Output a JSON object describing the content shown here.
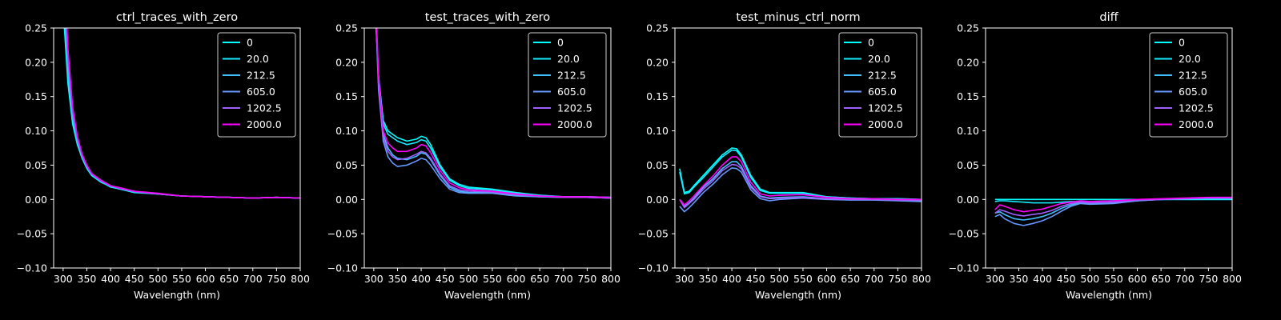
{
  "figure": {
    "background": "#000000",
    "foreground": "#ffffff"
  },
  "legend": {
    "placement": "top-right",
    "entries": [
      {
        "label": "0",
        "color": "#00ffff"
      },
      {
        "label": "20.0",
        "color": "#14ebff"
      },
      {
        "label": "212.5",
        "color": "#40bfff"
      },
      {
        "label": "605.0",
        "color": "#6699ff"
      },
      {
        "label": "1202.5",
        "color": "#a05fff"
      },
      {
        "label": "2000.0",
        "color": "#ff00ff"
      }
    ]
  },
  "chart_data": [
    {
      "type": "line",
      "title": "ctrl_traces_with_zero",
      "xlabel": "Wavelength (nm)",
      "ylabel": "",
      "xlim": [
        280,
        800
      ],
      "ylim": [
        -0.1,
        0.25
      ],
      "xticks": [
        300,
        350,
        400,
        450,
        500,
        550,
        600,
        650,
        700,
        750,
        800
      ],
      "yticks": [
        -0.1,
        -0.05,
        0.0,
        0.05,
        0.1,
        0.15,
        0.2,
        0.25
      ],
      "grid": false,
      "legend": "top-right",
      "x": [
        300,
        310,
        320,
        330,
        340,
        350,
        360,
        370,
        380,
        390,
        400,
        420,
        450,
        500,
        550,
        600,
        650,
        700,
        750,
        800
      ],
      "series": [
        {
          "name": "0",
          "values": [
            0.28,
            0.17,
            0.11,
            0.08,
            0.06,
            0.045,
            0.035,
            0.03,
            0.025,
            0.022,
            0.018,
            0.015,
            0.01,
            0.008,
            0.005,
            0.004,
            0.003,
            0.002,
            0.003,
            0.002
          ]
        },
        {
          "name": "20.0",
          "values": [
            0.3,
            0.18,
            0.115,
            0.082,
            0.061,
            0.046,
            0.036,
            0.031,
            0.026,
            0.022,
            0.019,
            0.015,
            0.011,
            0.008,
            0.005,
            0.004,
            0.003,
            0.002,
            0.003,
            0.002
          ]
        },
        {
          "name": "212.5",
          "values": [
            0.32,
            0.19,
            0.12,
            0.085,
            0.062,
            0.047,
            0.037,
            0.031,
            0.026,
            0.023,
            0.019,
            0.016,
            0.011,
            0.008,
            0.005,
            0.004,
            0.003,
            0.002,
            0.003,
            0.002
          ]
        },
        {
          "name": "605.0",
          "values": [
            0.34,
            0.2,
            0.125,
            0.087,
            0.063,
            0.048,
            0.037,
            0.032,
            0.027,
            0.023,
            0.02,
            0.016,
            0.011,
            0.008,
            0.005,
            0.004,
            0.003,
            0.002,
            0.003,
            0.002
          ]
        },
        {
          "name": "1202.5",
          "values": [
            0.36,
            0.21,
            0.13,
            0.09,
            0.065,
            0.049,
            0.038,
            0.032,
            0.027,
            0.024,
            0.02,
            0.016,
            0.012,
            0.008,
            0.005,
            0.004,
            0.003,
            0.002,
            0.003,
            0.002
          ]
        },
        {
          "name": "2000.0",
          "values": [
            0.38,
            0.22,
            0.135,
            0.092,
            0.066,
            0.05,
            0.038,
            0.033,
            0.028,
            0.024,
            0.02,
            0.017,
            0.012,
            0.009,
            0.005,
            0.004,
            0.003,
            0.002,
            0.003,
            0.002
          ]
        }
      ]
    },
    {
      "type": "line",
      "title": "test_traces_with_zero",
      "xlabel": "Wavelength (nm)",
      "ylabel": "",
      "xlim": [
        280,
        800
      ],
      "ylim": [
        -0.1,
        0.25
      ],
      "xticks": [
        300,
        350,
        400,
        450,
        500,
        550,
        600,
        650,
        700,
        750,
        800
      ],
      "yticks": [
        -0.1,
        -0.05,
        0.0,
        0.05,
        0.1,
        0.15,
        0.2,
        0.25
      ],
      "grid": false,
      "legend": "top-right",
      "x": [
        300,
        310,
        320,
        330,
        340,
        350,
        370,
        390,
        400,
        410,
        420,
        440,
        460,
        480,
        500,
        550,
        600,
        650,
        700,
        750,
        800
      ],
      "series": [
        {
          "name": "0",
          "values": [
            0.32,
            0.18,
            0.115,
            0.1,
            0.095,
            0.09,
            0.085,
            0.088,
            0.092,
            0.09,
            0.08,
            0.05,
            0.03,
            0.022,
            0.018,
            0.015,
            0.01,
            0.006,
            0.004,
            0.004,
            0.003
          ]
        },
        {
          "name": "20.0",
          "values": [
            0.33,
            0.18,
            0.11,
            0.095,
            0.09,
            0.085,
            0.08,
            0.083,
            0.087,
            0.085,
            0.075,
            0.047,
            0.028,
            0.02,
            0.016,
            0.014,
            0.009,
            0.006,
            0.004,
            0.004,
            0.003
          ]
        },
        {
          "name": "212.5",
          "values": [
            0.34,
            0.17,
            0.095,
            0.075,
            0.065,
            0.06,
            0.058,
            0.063,
            0.068,
            0.066,
            0.058,
            0.035,
            0.018,
            0.012,
            0.01,
            0.01,
            0.006,
            0.004,
            0.003,
            0.003,
            0.002
          ]
        },
        {
          "name": "605.0",
          "values": [
            0.35,
            0.16,
            0.085,
            0.062,
            0.053,
            0.048,
            0.05,
            0.056,
            0.06,
            0.058,
            0.05,
            0.03,
            0.015,
            0.01,
            0.009,
            0.009,
            0.005,
            0.004,
            0.003,
            0.003,
            0.002
          ]
        },
        {
          "name": "1202.5",
          "values": [
            0.36,
            0.17,
            0.09,
            0.07,
            0.062,
            0.058,
            0.06,
            0.066,
            0.07,
            0.068,
            0.06,
            0.037,
            0.02,
            0.014,
            0.012,
            0.011,
            0.007,
            0.005,
            0.003,
            0.003,
            0.002
          ]
        },
        {
          "name": "2000.0",
          "values": [
            0.37,
            0.18,
            0.1,
            0.082,
            0.075,
            0.07,
            0.07,
            0.075,
            0.08,
            0.078,
            0.068,
            0.042,
            0.024,
            0.017,
            0.014,
            0.012,
            0.008,
            0.005,
            0.004,
            0.004,
            0.003
          ]
        }
      ]
    },
    {
      "type": "line",
      "title": "test_minus_ctrl_norm",
      "xlabel": "Wavelength (nm)",
      "ylabel": "",
      "xlim": [
        280,
        800
      ],
      "ylim": [
        -0.1,
        0.25
      ],
      "xticks": [
        300,
        350,
        400,
        450,
        500,
        550,
        600,
        650,
        700,
        750,
        800
      ],
      "yticks": [
        -0.1,
        -0.05,
        0.0,
        0.05,
        0.1,
        0.15,
        0.2,
        0.25
      ],
      "grid": false,
      "legend": "top-right",
      "x": [
        290,
        300,
        310,
        320,
        340,
        360,
        380,
        400,
        410,
        420,
        440,
        460,
        480,
        500,
        550,
        600,
        650,
        700,
        750,
        800
      ],
      "series": [
        {
          "name": "0",
          "values": [
            0.045,
            0.01,
            0.012,
            0.02,
            0.035,
            0.05,
            0.065,
            0.075,
            0.074,
            0.065,
            0.035,
            0.015,
            0.01,
            0.01,
            0.01,
            0.004,
            0.002,
            0.001,
            0.001,
            0.0
          ]
        },
        {
          "name": "20.0",
          "values": [
            0.04,
            0.008,
            0.01,
            0.018,
            0.032,
            0.047,
            0.062,
            0.072,
            0.071,
            0.062,
            0.032,
            0.013,
            0.009,
            0.009,
            0.009,
            0.004,
            0.002,
            0.001,
            0.001,
            0.0
          ]
        },
        {
          "name": "212.5",
          "values": [
            0.0,
            -0.01,
            -0.005,
            0.002,
            0.018,
            0.03,
            0.045,
            0.055,
            0.055,
            0.048,
            0.02,
            0.005,
            0.002,
            0.003,
            0.004,
            0.001,
            0.0,
            0.0,
            -0.001,
            -0.002
          ]
        },
        {
          "name": "605.0",
          "values": [
            -0.01,
            -0.018,
            -0.012,
            -0.005,
            0.01,
            0.022,
            0.036,
            0.046,
            0.045,
            0.04,
            0.014,
            0.001,
            -0.002,
            0.0,
            0.002,
            0.0,
            -0.001,
            -0.001,
            -0.002,
            -0.003
          ]
        },
        {
          "name": "1202.5",
          "values": [
            0.0,
            -0.012,
            -0.006,
            0.0,
            0.015,
            0.027,
            0.042,
            0.051,
            0.05,
            0.045,
            0.018,
            0.004,
            0.001,
            0.002,
            0.003,
            0.001,
            0.0,
            0.0,
            -0.001,
            -0.001
          ]
        },
        {
          "name": "2000.0",
          "values": [
            0.0,
            -0.008,
            -0.002,
            0.005,
            0.02,
            0.034,
            0.05,
            0.062,
            0.062,
            0.055,
            0.025,
            0.008,
            0.005,
            0.006,
            0.007,
            0.003,
            0.001,
            0.001,
            0.0,
            0.0
          ]
        }
      ]
    },
    {
      "type": "line",
      "title": "diff",
      "xlabel": "Wavelength (nm)",
      "ylabel": "",
      "xlim": [
        280,
        800
      ],
      "ylim": [
        -0.1,
        0.25
      ],
      "xticks": [
        300,
        350,
        400,
        450,
        500,
        550,
        600,
        650,
        700,
        750,
        800
      ],
      "yticks": [
        -0.1,
        -0.05,
        0.0,
        0.05,
        0.1,
        0.15,
        0.2,
        0.25
      ],
      "grid": false,
      "legend": "top-right",
      "x": [
        300,
        310,
        320,
        340,
        360,
        380,
        400,
        420,
        440,
        460,
        480,
        500,
        550,
        600,
        650,
        700,
        750,
        800
      ],
      "series": [
        {
          "name": "0",
          "values": [
            0.0,
            0.0,
            0.0,
            0.0,
            0.0,
            0.0,
            0.0,
            0.0,
            0.0,
            0.0,
            0.0,
            0.0,
            0.0,
            0.0,
            0.0,
            0.0,
            0.0,
            0.0
          ]
        },
        {
          "name": "20.0",
          "values": [
            -0.003,
            -0.002,
            -0.002,
            -0.003,
            -0.004,
            -0.005,
            -0.005,
            -0.005,
            -0.004,
            -0.003,
            -0.003,
            -0.003,
            -0.002,
            -0.001,
            0.0,
            0.0,
            0.0,
            0.0
          ]
        },
        {
          "name": "212.5",
          "values": [
            -0.02,
            -0.018,
            -0.022,
            -0.028,
            -0.03,
            -0.028,
            -0.025,
            -0.02,
            -0.013,
            -0.008,
            -0.005,
            -0.006,
            -0.005,
            -0.002,
            0.0,
            0.001,
            0.002,
            0.002
          ]
        },
        {
          "name": "605.0",
          "values": [
            -0.025,
            -0.022,
            -0.028,
            -0.035,
            -0.038,
            -0.035,
            -0.031,
            -0.025,
            -0.017,
            -0.01,
            -0.006,
            -0.007,
            -0.006,
            -0.002,
            0.0,
            0.001,
            0.002,
            0.002
          ]
        },
        {
          "name": "1202.5",
          "values": [
            -0.02,
            -0.015,
            -0.017,
            -0.022,
            -0.024,
            -0.022,
            -0.02,
            -0.016,
            -0.01,
            -0.006,
            -0.004,
            -0.005,
            -0.004,
            -0.001,
            0.0,
            0.001,
            0.002,
            0.002
          ]
        },
        {
          "name": "2000.0",
          "values": [
            -0.015,
            -0.008,
            -0.01,
            -0.015,
            -0.018,
            -0.016,
            -0.014,
            -0.01,
            -0.006,
            -0.004,
            -0.002,
            -0.003,
            -0.002,
            0.0,
            0.001,
            0.002,
            0.003,
            0.003
          ]
        }
      ]
    }
  ]
}
